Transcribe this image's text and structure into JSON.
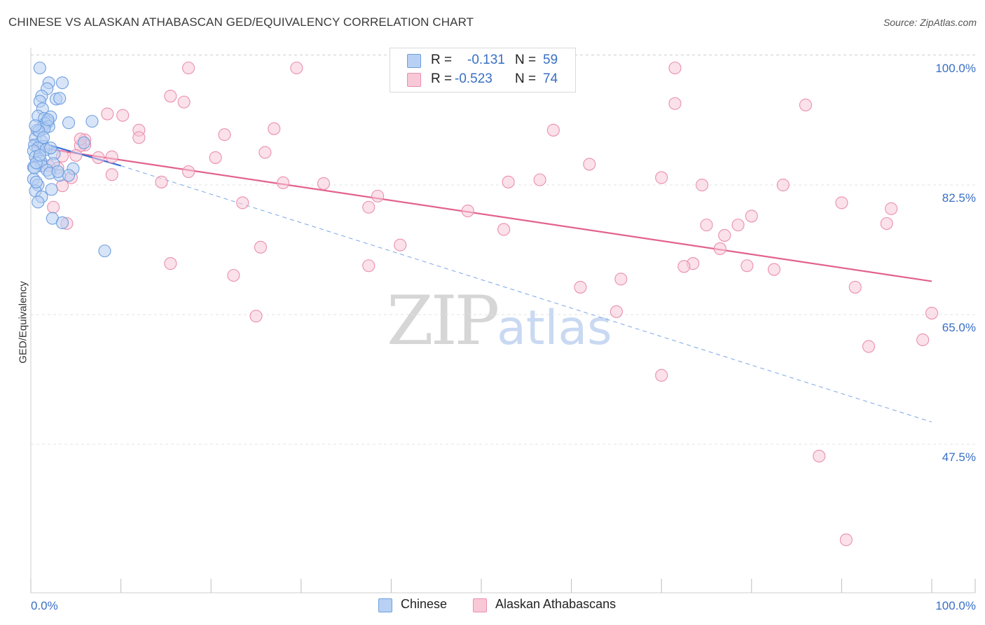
{
  "chart_data": {
    "type": "scatter",
    "title": "CHINESE VS ALASKAN ATHABASCAN GED/EQUIVALENCY CORRELATION CHART",
    "source": "Source: ZipAtlas.com",
    "xlabel": "",
    "ylabel": "GED/Equivalency",
    "xlim": [
      0,
      100
    ],
    "ylim": [
      32,
      102
    ],
    "x_tick_labels": [
      "0.0%",
      "100.0%"
    ],
    "y_ticks": [
      {
        "value": 100,
        "label": "100.0%"
      },
      {
        "value": 82.5,
        "label": "82.5%"
      },
      {
        "value": 65,
        "label": "65.0%"
      },
      {
        "value": 47.5,
        "label": "47.5%"
      }
    ],
    "grid": true,
    "legend_top": [
      {
        "r_label": "R =",
        "r_value": "-0.131",
        "n_label": "N =",
        "n_value": "59",
        "color": "#6f9fe0",
        "fill": "#b8d0f3"
      },
      {
        "r_label": "R =",
        "r_value": "-0.523",
        "n_label": "N =",
        "n_value": "74",
        "color": "#ea8fae",
        "fill": "#f8c8d7"
      }
    ],
    "series": [
      {
        "name": "Chinese",
        "color": "#6f9fe0",
        "fill": "#b8d0f3",
        "trend": {
          "x0": 0,
          "y0": 90.3,
          "x1": 10,
          "y1": 86.8,
          "color": "#3a6fd8"
        },
        "trend_ext": {
          "x0": 10,
          "y0": 86.8,
          "x1": 100,
          "y1": 52.2,
          "color": "#7aa6e6"
        },
        "points": [
          [
            1.0,
            100.0
          ],
          [
            2.0,
            98.0
          ],
          [
            3.5,
            98.0
          ],
          [
            1.8,
            97.2
          ],
          [
            1.2,
            96.2
          ],
          [
            2.8,
            95.8
          ],
          [
            3.2,
            95.9
          ],
          [
            1.0,
            95.5
          ],
          [
            1.3,
            94.5
          ],
          [
            0.8,
            93.5
          ],
          [
            1.5,
            93.2
          ],
          [
            2.2,
            93.4
          ],
          [
            1.9,
            92.7
          ],
          [
            1.6,
            92.5
          ],
          [
            4.2,
            92.6
          ],
          [
            6.8,
            92.8
          ],
          [
            1.3,
            92.0
          ],
          [
            2.0,
            92.1
          ],
          [
            1.5,
            91.8
          ],
          [
            0.7,
            91.6
          ],
          [
            0.5,
            90.5
          ],
          [
            1.2,
            90.1
          ],
          [
            0.4,
            89.6
          ],
          [
            1.4,
            89.4
          ],
          [
            0.8,
            89.2
          ],
          [
            1.7,
            89.0
          ],
          [
            0.3,
            88.8
          ],
          [
            2.6,
            88.4
          ],
          [
            0.5,
            88.0
          ],
          [
            0.9,
            87.7
          ],
          [
            1.1,
            87.4
          ],
          [
            2.5,
            87.1
          ],
          [
            1.2,
            86.8
          ],
          [
            0.3,
            86.6
          ],
          [
            1.8,
            86.2
          ],
          [
            4.7,
            86.4
          ],
          [
            2.1,
            85.8
          ],
          [
            3.2,
            85.5
          ],
          [
            4.2,
            85.5
          ],
          [
            0.3,
            85.0
          ],
          [
            0.8,
            84.2
          ],
          [
            2.3,
            83.6
          ],
          [
            0.5,
            83.4
          ],
          [
            1.2,
            82.6
          ],
          [
            0.8,
            81.9
          ],
          [
            2.4,
            79.7
          ],
          [
            3.5,
            79.1
          ],
          [
            8.2,
            75.3
          ],
          [
            0.4,
            86.5
          ],
          [
            0.6,
            87.2
          ],
          [
            1.0,
            88.2
          ],
          [
            1.9,
            93.0
          ],
          [
            2.2,
            89.2
          ],
          [
            5.9,
            89.9
          ],
          [
            0.9,
            91.5
          ],
          [
            1.4,
            90.6
          ],
          [
            0.6,
            84.6
          ],
          [
            3.0,
            86.0
          ],
          [
            0.5,
            92.2
          ]
        ]
      },
      {
        "name": "Alaskan Athabascans",
        "color": "#ea8fae",
        "fill": "#f8c8d7",
        "trend": {
          "x0": 0,
          "y0": 89.4,
          "x1": 100,
          "y1": 71.2,
          "color": "#e2628e"
        },
        "points": [
          [
            17.5,
            100.0
          ],
          [
            29.5,
            100.0
          ],
          [
            71.5,
            100.0
          ],
          [
            15.5,
            96.2
          ],
          [
            17.0,
            95.4
          ],
          [
            71.5,
            95.2
          ],
          [
            86.0,
            95.0
          ],
          [
            8.5,
            93.8
          ],
          [
            10.2,
            93.6
          ],
          [
            12.0,
            91.6
          ],
          [
            27.0,
            91.8
          ],
          [
            58.0,
            91.6
          ],
          [
            21.5,
            91.0
          ],
          [
            12.0,
            90.6
          ],
          [
            6.0,
            90.3
          ],
          [
            6.0,
            89.6
          ],
          [
            5.5,
            89.5
          ],
          [
            26.0,
            88.6
          ],
          [
            3.5,
            88.1
          ],
          [
            5.0,
            88.2
          ],
          [
            7.5,
            87.9
          ],
          [
            9.0,
            88.0
          ],
          [
            20.5,
            87.9
          ],
          [
            62.0,
            87.0
          ],
          [
            2.0,
            86.8
          ],
          [
            17.5,
            86.0
          ],
          [
            9.0,
            85.6
          ],
          [
            4.5,
            85.2
          ],
          [
            14.5,
            84.6
          ],
          [
            28.0,
            84.5
          ],
          [
            32.5,
            84.4
          ],
          [
            53.0,
            84.6
          ],
          [
            70.0,
            85.2
          ],
          [
            74.5,
            84.2
          ],
          [
            83.5,
            84.2
          ],
          [
            3.5,
            84.1
          ],
          [
            38.5,
            82.7
          ],
          [
            23.5,
            81.8
          ],
          [
            2.5,
            81.2
          ],
          [
            37.5,
            81.2
          ],
          [
            90.0,
            81.8
          ],
          [
            95.5,
            81.0
          ],
          [
            80.0,
            80.0
          ],
          [
            75.0,
            78.8
          ],
          [
            78.5,
            78.8
          ],
          [
            52.5,
            78.2
          ],
          [
            95.0,
            79.0
          ],
          [
            4.0,
            79.0
          ],
          [
            77.0,
            77.4
          ],
          [
            41.0,
            76.1
          ],
          [
            25.5,
            75.8
          ],
          [
            76.5,
            75.6
          ],
          [
            15.5,
            73.6
          ],
          [
            37.5,
            73.3
          ],
          [
            73.5,
            73.6
          ],
          [
            72.5,
            73.2
          ],
          [
            79.5,
            73.3
          ],
          [
            82.5,
            72.8
          ],
          [
            22.5,
            72.0
          ],
          [
            65.5,
            71.5
          ],
          [
            61.0,
            70.4
          ],
          [
            91.5,
            70.4
          ],
          [
            65.0,
            67.1
          ],
          [
            100.0,
            66.9
          ],
          [
            25.0,
            66.5
          ],
          [
            99.0,
            63.3
          ],
          [
            93.0,
            62.4
          ],
          [
            70.0,
            58.5
          ],
          [
            87.5,
            47.6
          ],
          [
            90.5,
            36.3
          ],
          [
            5.5,
            90.4
          ],
          [
            48.5,
            80.7
          ],
          [
            56.5,
            84.9
          ],
          [
            3.0,
            86.5
          ]
        ]
      }
    ]
  },
  "watermark": {
    "part1": "ZIP",
    "part2": "atlas"
  }
}
